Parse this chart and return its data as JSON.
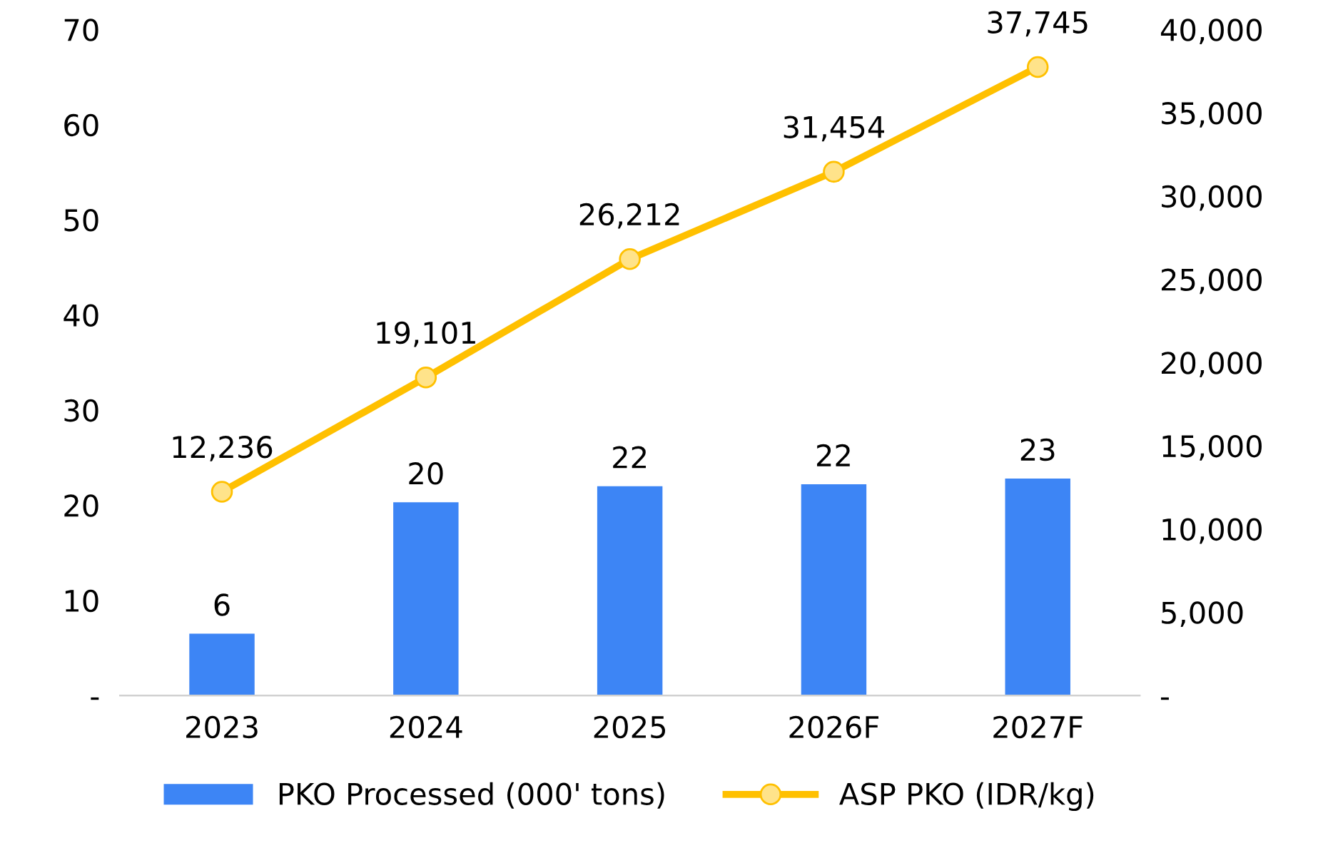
{
  "chart_data": {
    "type": "bar",
    "categories": [
      "2023",
      "2024",
      "2025",
      "2026F",
      "2027F"
    ],
    "series": [
      {
        "name": "PKO Processed (000' tons)",
        "color": "#3d85f5",
        "values": [
          6.5,
          20.3,
          22.0,
          22.2,
          22.8
        ],
        "value_labels": [
          "6",
          "20",
          "22",
          "22",
          "23"
        ]
      },
      {
        "name": "ASP PKO (IDR/kg)",
        "type": "line",
        "axis": "y2",
        "color": "#ffc000",
        "marker": "circle",
        "values": [
          12236,
          19101,
          26212,
          31454,
          37745
        ],
        "value_labels": [
          "12,236",
          "19,101",
          "26,212",
          "31,454",
          "37,745"
        ]
      }
    ],
    "ylim": [
      0,
      70
    ],
    "yticks": [
      {
        "value": 0,
        "label": "-"
      },
      10,
      20,
      30,
      40,
      50,
      60,
      70
    ],
    "y2lim": [
      0,
      40000
    ],
    "y2ticks": [
      {
        "value": 0,
        "label": "-"
      },
      {
        "value": 5000,
        "label": "5,000"
      },
      {
        "value": 10000,
        "label": "10,000"
      },
      {
        "value": 15000,
        "label": "15,000"
      },
      {
        "value": 20000,
        "label": "20,000"
      },
      {
        "value": 25000,
        "label": "25,000"
      },
      {
        "value": 30000,
        "label": "30,000"
      },
      {
        "value": 35000,
        "label": "35,000"
      },
      {
        "value": 40000,
        "label": "40,000"
      }
    ],
    "grid": false,
    "legend": "bottom"
  }
}
